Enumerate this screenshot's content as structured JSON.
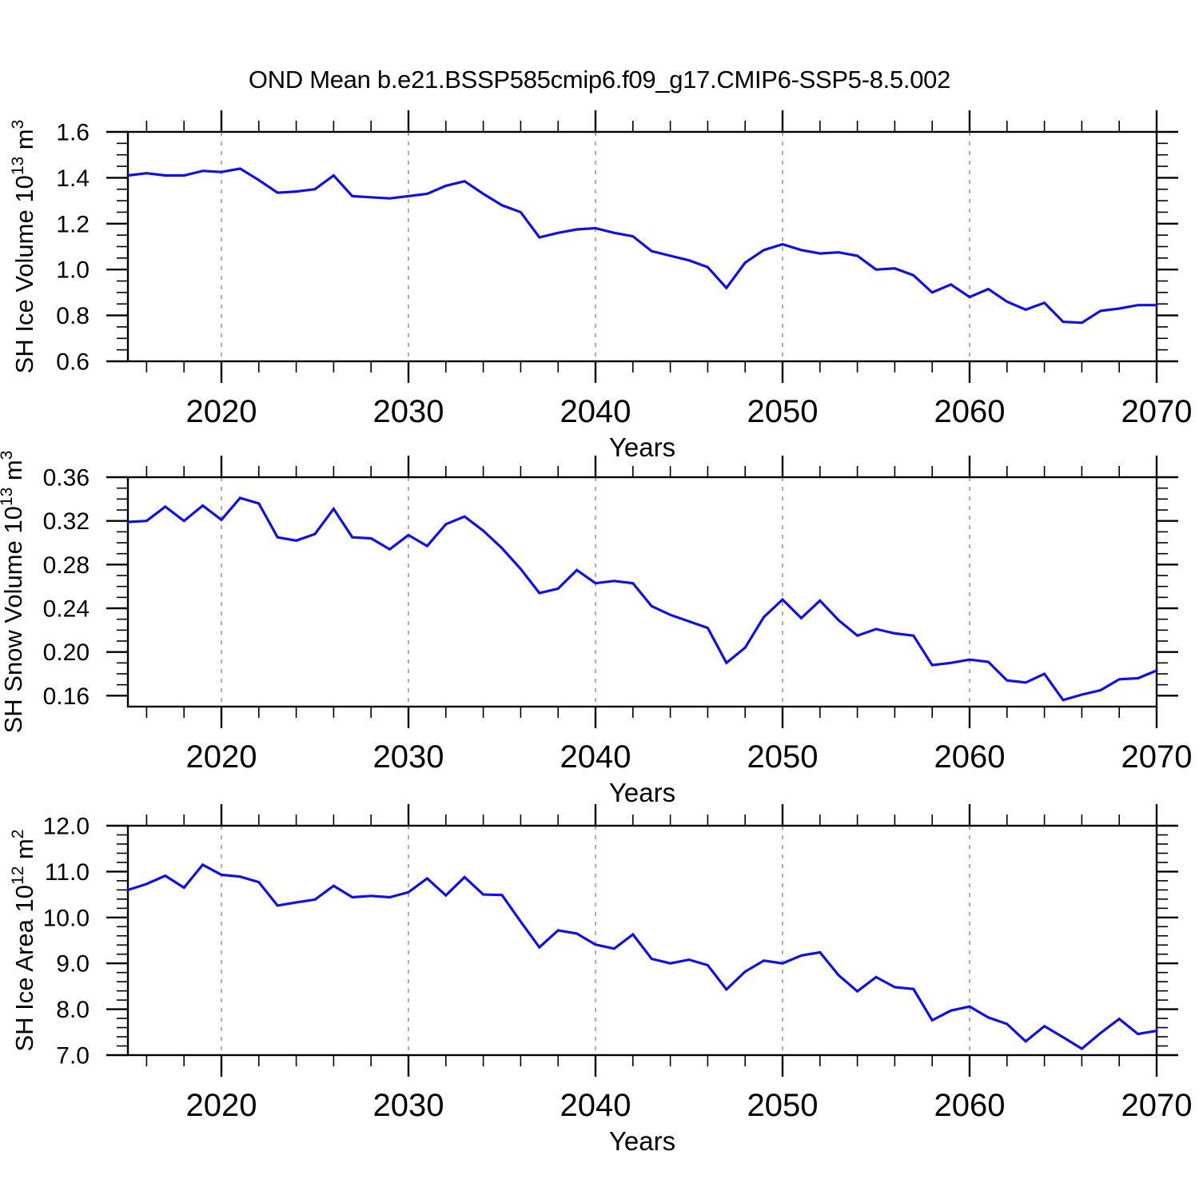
{
  "title": "OND Mean b.e21.BSSP585cmip6.f09_g17.CMIP6-SSP5-8.5.002",
  "colors": {
    "line": "#1010e0",
    "axis": "#000000",
    "gridline": "#9a9a9a",
    "background": "#ffffff"
  },
  "chart_data": {
    "type": "line",
    "title": "OND Mean b.e21.BSSP585cmip6.f09_g17.CMIP6-SSP5-8.5.002",
    "grid": "vertical-dashed-at-decades",
    "legend": "none",
    "xlabel": "Years",
    "xlim": [
      2015,
      2070
    ],
    "x_major_ticks": [
      2020,
      2030,
      2040,
      2050,
      2060,
      2070
    ],
    "x_tick_labels": [
      "2020",
      "2030",
      "2040",
      "2050",
      "2060",
      "2070"
    ],
    "x_minor_tick_step": 2,
    "x_gridlines": [
      2020,
      2030,
      2040,
      2050,
      2060
    ],
    "x": [
      2015,
      2016,
      2017,
      2018,
      2019,
      2020,
      2021,
      2022,
      2023,
      2024,
      2025,
      2026,
      2027,
      2028,
      2029,
      2030,
      2031,
      2032,
      2033,
      2034,
      2035,
      2036,
      2037,
      2038,
      2039,
      2040,
      2041,
      2042,
      2043,
      2044,
      2045,
      2046,
      2047,
      2048,
      2049,
      2050,
      2051,
      2052,
      2053,
      2054,
      2055,
      2056,
      2057,
      2058,
      2059,
      2060,
      2061,
      2062,
      2063,
      2064,
      2065,
      2066,
      2067,
      2068,
      2069,
      2070
    ],
    "panels": [
      {
        "id": "sh-ice-volume",
        "ylabel_text": "SH Ice Volume 10^13 m^3",
        "ylabel_parts": [
          {
            "t": "SH Ice Volume 10"
          },
          {
            "t": "13",
            "sup": true
          },
          {
            "t": " m"
          },
          {
            "t": "3",
            "sup": true
          }
        ],
        "ylim": [
          0.6,
          1.6
        ],
        "y_major_ticks": [
          0.6,
          0.8,
          1.0,
          1.2,
          1.4,
          1.6
        ],
        "y_tick_labels": [
          "0.6",
          "0.8",
          "1.0",
          "1.2",
          "1.4",
          "1.6"
        ],
        "y_minor_tick_step": 0.05,
        "values": [
          1.41,
          1.42,
          1.41,
          1.41,
          1.43,
          1.425,
          1.44,
          1.39,
          1.335,
          1.34,
          1.35,
          1.41,
          1.32,
          1.315,
          1.31,
          1.32,
          1.33,
          1.365,
          1.385,
          1.33,
          1.28,
          1.25,
          1.14,
          1.16,
          1.175,
          1.18,
          1.16,
          1.145,
          1.08,
          1.06,
          1.04,
          1.01,
          0.92,
          1.03,
          1.085,
          1.11,
          1.085,
          1.07,
          1.075,
          1.06,
          1.0,
          1.005,
          0.975,
          0.9,
          0.935,
          0.88,
          0.915,
          0.86,
          0.825,
          0.855,
          0.772,
          0.768,
          0.82,
          0.83,
          0.845,
          0.845
        ]
      },
      {
        "id": "sh-snow-volume",
        "ylabel_text": "SH Snow Volume 10^13 m^3",
        "ylabel_parts": [
          {
            "t": "SH Snow Volume 10"
          },
          {
            "t": "13",
            "sup": true
          },
          {
            "t": " m"
          },
          {
            "t": "3",
            "sup": true
          }
        ],
        "ylim": [
          0.15,
          0.36
        ],
        "y_major_ticks": [
          0.16,
          0.2,
          0.24,
          0.28,
          0.32,
          0.36
        ],
        "y_tick_labels": [
          "0.16",
          "0.20",
          "0.24",
          "0.28",
          "0.32",
          "0.36"
        ],
        "y_minor_tick_step": 0.01,
        "values": [
          0.319,
          0.32,
          0.333,
          0.32,
          0.334,
          0.321,
          0.341,
          0.336,
          0.305,
          0.302,
          0.308,
          0.331,
          0.305,
          0.304,
          0.294,
          0.307,
          0.297,
          0.317,
          0.324,
          0.311,
          0.295,
          0.276,
          0.254,
          0.258,
          0.275,
          0.263,
          0.265,
          0.263,
          0.242,
          0.234,
          0.228,
          0.222,
          0.19,
          0.204,
          0.232,
          0.248,
          0.231,
          0.247,
          0.229,
          0.215,
          0.221,
          0.217,
          0.215,
          0.188,
          0.19,
          0.193,
          0.191,
          0.174,
          0.172,
          0.18,
          0.156,
          0.161,
          0.165,
          0.175,
          0.176,
          0.183
        ]
      },
      {
        "id": "sh-ice-area",
        "ylabel_text": "SH Ice Area 10^12 m^2",
        "ylabel_parts": [
          {
            "t": "SH Ice Area 10"
          },
          {
            "t": "12",
            "sup": true
          },
          {
            "t": " m"
          },
          {
            "t": "2",
            "sup": true
          }
        ],
        "ylim": [
          7.0,
          12.0
        ],
        "y_major_ticks": [
          7.0,
          8.0,
          9.0,
          10.0,
          11.0,
          12.0
        ],
        "y_tick_labels": [
          "7.0",
          "8.0",
          "9.0",
          "10.0",
          "11.0",
          "12.0"
        ],
        "y_minor_tick_step": 0.2,
        "values": [
          10.6,
          10.73,
          10.91,
          10.65,
          11.15,
          10.93,
          10.89,
          10.77,
          10.26,
          10.33,
          10.39,
          10.69,
          10.44,
          10.47,
          10.44,
          10.55,
          10.85,
          10.48,
          10.88,
          10.5,
          10.49,
          9.91,
          9.35,
          9.72,
          9.65,
          9.41,
          9.32,
          9.63,
          9.1,
          9.0,
          9.08,
          8.96,
          8.43,
          8.82,
          9.06,
          9.0,
          9.17,
          9.24,
          8.74,
          8.39,
          8.7,
          8.48,
          8.44,
          7.76,
          7.97,
          8.06,
          7.82,
          7.68,
          7.3,
          7.63,
          7.39,
          7.14,
          7.48,
          7.79,
          7.46,
          7.53
        ]
      }
    ]
  }
}
